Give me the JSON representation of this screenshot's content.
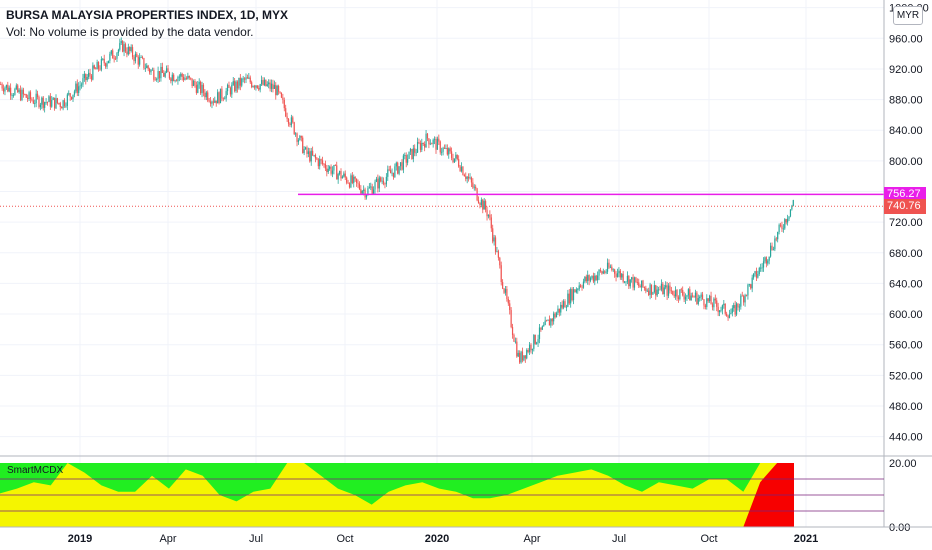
{
  "header": {
    "title": "BURSA MALAYSIA PROPERTIES INDEX, 1D, MYX",
    "subtitle": "Vol: No volume is provided by the data vendor."
  },
  "currency_label": "MYR",
  "price_labels": {
    "resistance": "756.27",
    "last": "740.76"
  },
  "indicator": {
    "label": "SmartMCDX",
    "y_ticks": [
      "20.00",
      "0.00"
    ]
  },
  "colors": {
    "up": "#26a69a",
    "down": "#ef5350",
    "resistance_line": "#e91ee9",
    "last_price": "#ef5350",
    "ind_green": "#21ee21",
    "ind_yellow": "#f5f500",
    "ind_red": "#f70000"
  },
  "chart_data": {
    "type": "candlestick",
    "title": "BURSA MALAYSIA PROPERTIES INDEX, 1D, MYX",
    "currency": "MYR",
    "x_ticks": [
      "2019",
      "Apr",
      "Jul",
      "Oct",
      "2020",
      "Apr",
      "Jul",
      "Oct",
      "2021"
    ],
    "y_ticks": [
      "440.00",
      "480.00",
      "520.00",
      "560.00",
      "600.00",
      "640.00",
      "680.00",
      "720.00",
      "760.00",
      "800.00",
      "840.00",
      "880.00",
      "920.00",
      "960.00",
      "1000.00"
    ],
    "ylim": [
      416,
      1010
    ],
    "series": [
      {
        "points": [
          {
            "date": "2018-10",
            "close": 900
          },
          {
            "date": "2018-11",
            "close": 880
          },
          {
            "date": "2018-12",
            "close": 875
          },
          {
            "date": "2019-01",
            "close": 915
          },
          {
            "date": "2019-02",
            "close": 950
          },
          {
            "date": "2019-03",
            "close": 915
          },
          {
            "date": "2019-04",
            "close": 910
          },
          {
            "date": "2019-05",
            "close": 880
          },
          {
            "date": "2019-06",
            "close": 905
          },
          {
            "date": "2019-07",
            "close": 895
          },
          {
            "date": "2019-08",
            "close": 810
          },
          {
            "date": "2019-09",
            "close": 785
          },
          {
            "date": "2019-10",
            "close": 760
          },
          {
            "date": "2019-11",
            "close": 790
          },
          {
            "date": "2019-12",
            "close": 830
          },
          {
            "date": "2020-01",
            "close": 800
          },
          {
            "date": "2020-02",
            "close": 730
          },
          {
            "date": "2020-03",
            "close": 540
          },
          {
            "date": "2020-04",
            "close": 590
          },
          {
            "date": "2020-05",
            "close": 640
          },
          {
            "date": "2020-06",
            "close": 660
          },
          {
            "date": "2020-07",
            "close": 635
          },
          {
            "date": "2020-08",
            "close": 630
          },
          {
            "date": "2020-09",
            "close": 620
          },
          {
            "date": "2020-10",
            "close": 600
          },
          {
            "date": "2020-11",
            "close": 665
          },
          {
            "date": "2020-12",
            "close": 745
          }
        ]
      }
    ],
    "horizontal_lines": [
      {
        "value": 756.27,
        "style": "solid",
        "color": "#e91ee9"
      },
      {
        "value": 740.76,
        "style": "dotted",
        "color": "#ef5350"
      }
    ],
    "indicator": {
      "name": "SmartMCDX",
      "ylim": [
        0,
        20
      ],
      "levels": [
        5,
        10,
        15
      ],
      "green_top": 20,
      "yellow_top": [
        10.5,
        12,
        14,
        13,
        20,
        17,
        13,
        11,
        11,
        16,
        12,
        18,
        16,
        10,
        8,
        11,
        12,
        20,
        20,
        16,
        12,
        10,
        7,
        11,
        13,
        14,
        12,
        11,
        9,
        9,
        10,
        12,
        14,
        16,
        17,
        18,
        16,
        13,
        11,
        14,
        13,
        12,
        15,
        15,
        11,
        20,
        20,
        14
      ],
      "red_top": [
        0,
        0,
        0,
        0,
        0,
        0,
        0,
        0,
        0,
        0,
        0,
        0,
        0,
        0,
        0,
        0,
        0,
        0,
        0,
        0,
        0,
        0,
        0,
        0,
        0,
        0,
        0,
        0,
        0,
        0,
        0,
        0,
        0,
        0,
        0,
        0,
        0,
        0,
        0,
        0,
        0,
        0,
        0,
        0,
        0,
        14,
        20,
        20
      ]
    }
  }
}
